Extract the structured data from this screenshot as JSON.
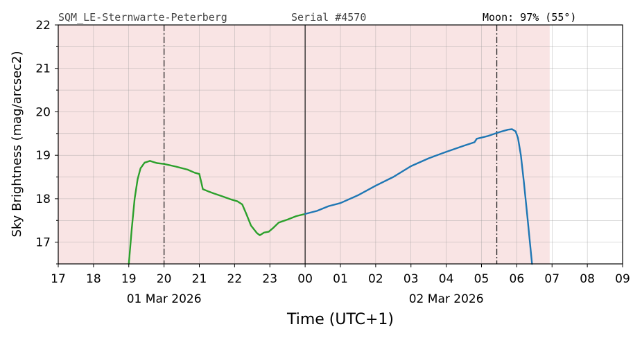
{
  "header": {
    "station": "SQM_LE-Sternwarte-Peterberg",
    "serial": "Serial #4570",
    "moon": "Moon: 97% (55°)"
  },
  "chart_data": {
    "type": "line",
    "xlabel": "Time (UTC+1)",
    "ylabel": "Sky Brightness (mag/arcsec2)",
    "xlim": [
      "2026-03-01 17:00",
      "2026-03-02 09:00"
    ],
    "ylim": [
      16.5,
      22
    ],
    "yticks": [
      17,
      18,
      19,
      20,
      21,
      22
    ],
    "x_tick_labels": [
      "17",
      "18",
      "19",
      "20",
      "21",
      "22",
      "23",
      "00",
      "01",
      "02",
      "03",
      "04",
      "05",
      "06",
      "07",
      "08",
      "09"
    ],
    "date_labels": [
      {
        "at": "2026-03-01 20:00",
        "text": "01 Mar 2026"
      },
      {
        "at": "2026-03-02 04:00",
        "text": "02 Mar 2026"
      }
    ],
    "grid": true,
    "night_shading": {
      "from": "2026-03-01 17:00",
      "to": "2026-03-02 06:56",
      "color": "#f9e4e4"
    },
    "reference_lines": [
      {
        "at": "2026-03-01 20:00",
        "style": "dashdot"
      },
      {
        "at": "2026-03-02 00:00",
        "style": "solid"
      },
      {
        "at": "2026-03-02 05:26",
        "style": "dashdot"
      }
    ],
    "series": [
      {
        "color": "#2ca02c",
        "points": [
          [
            "2026-03-01 19:00",
            16.5
          ],
          [
            "2026-03-01 19:05",
            17.3
          ],
          [
            "2026-03-01 19:10",
            18.0
          ],
          [
            "2026-03-01 19:15",
            18.45
          ],
          [
            "2026-03-01 19:20",
            18.7
          ],
          [
            "2026-03-01 19:27",
            18.83
          ],
          [
            "2026-03-01 19:36",
            18.87
          ],
          [
            "2026-03-01 19:48",
            18.82
          ],
          [
            "2026-03-01 20:00",
            18.8
          ],
          [
            "2026-03-01 20:20",
            18.74
          ],
          [
            "2026-03-01 20:40",
            18.67
          ],
          [
            "2026-03-01 20:52",
            18.6
          ],
          [
            "2026-03-01 21:00",
            18.57
          ],
          [
            "2026-03-01 21:03",
            18.4
          ],
          [
            "2026-03-01 21:06",
            18.22
          ],
          [
            "2026-03-01 21:15",
            18.17
          ],
          [
            "2026-03-01 21:25",
            18.12
          ],
          [
            "2026-03-01 21:38",
            18.06
          ],
          [
            "2026-03-01 21:55",
            17.98
          ],
          [
            "2026-03-01 22:05",
            17.94
          ],
          [
            "2026-03-01 22:13",
            17.87
          ],
          [
            "2026-03-01 22:20",
            17.65
          ],
          [
            "2026-03-01 22:28",
            17.38
          ],
          [
            "2026-03-01 22:38",
            17.21
          ],
          [
            "2026-03-01 22:43",
            17.16
          ],
          [
            "2026-03-01 22:50",
            17.22
          ],
          [
            "2026-03-01 22:58",
            17.24
          ],
          [
            "2026-03-01 23:05",
            17.32
          ],
          [
            "2026-03-01 23:15",
            17.45
          ],
          [
            "2026-03-01 23:30",
            17.52
          ],
          [
            "2026-03-01 23:45",
            17.6
          ],
          [
            "2026-03-02 00:00",
            17.65
          ]
        ]
      },
      {
        "color": "#1f77b4",
        "points": [
          [
            "2026-03-02 00:00",
            17.65
          ],
          [
            "2026-03-02 00:20",
            17.72
          ],
          [
            "2026-03-02 00:40",
            17.83
          ],
          [
            "2026-03-02 01:00",
            17.9
          ],
          [
            "2026-03-02 01:30",
            18.08
          ],
          [
            "2026-03-02 02:00",
            18.3
          ],
          [
            "2026-03-02 02:30",
            18.5
          ],
          [
            "2026-03-02 03:00",
            18.75
          ],
          [
            "2026-03-02 03:30",
            18.93
          ],
          [
            "2026-03-02 04:00",
            19.08
          ],
          [
            "2026-03-02 04:30",
            19.22
          ],
          [
            "2026-03-02 04:48",
            19.3
          ],
          [
            "2026-03-02 04:52",
            19.38
          ],
          [
            "2026-03-02 05:10",
            19.44
          ],
          [
            "2026-03-02 05:30",
            19.53
          ],
          [
            "2026-03-02 05:45",
            19.59
          ],
          [
            "2026-03-02 05:52",
            19.6
          ],
          [
            "2026-03-02 05:58",
            19.55
          ],
          [
            "2026-03-02 06:02",
            19.4
          ],
          [
            "2026-03-02 06:07",
            19.0
          ],
          [
            "2026-03-02 06:12",
            18.4
          ],
          [
            "2026-03-02 06:18",
            17.6
          ],
          [
            "2026-03-02 06:23",
            16.9
          ],
          [
            "2026-03-02 06:26",
            16.5
          ]
        ]
      }
    ]
  }
}
